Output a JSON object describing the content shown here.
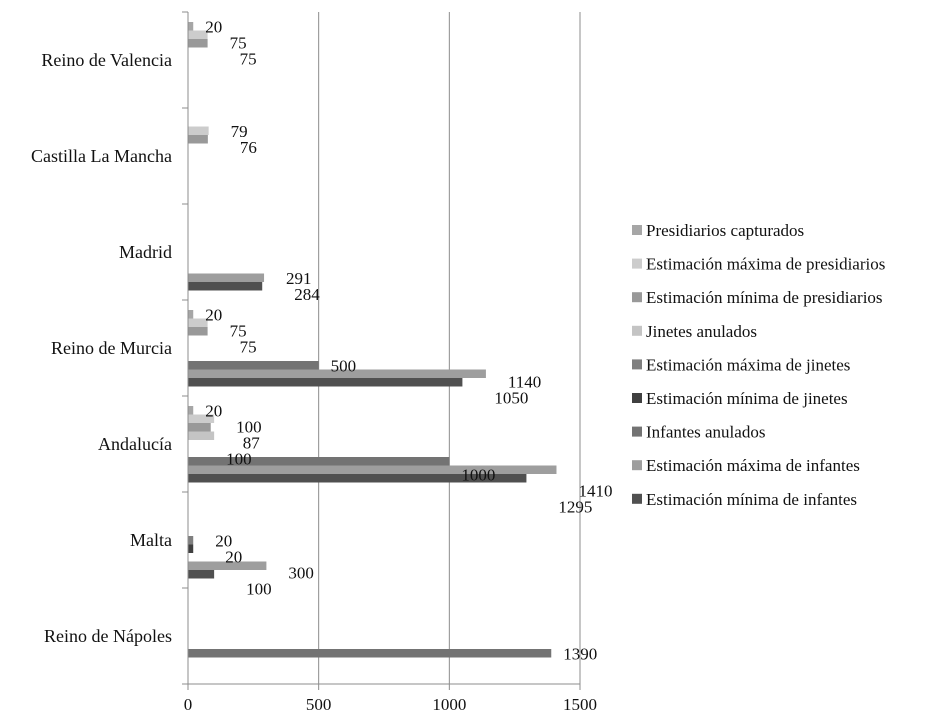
{
  "chart_data": {
    "type": "bar",
    "orientation": "horizontal",
    "title": "",
    "xlabel": "",
    "ylabel": "",
    "xlim": [
      0,
      1500
    ],
    "x_ticks": [
      "0",
      "500",
      "1000",
      "1500"
    ],
    "grid": "vertical",
    "legend_position": "right",
    "categories": [
      "Reino de Valencia",
      "Castilla La Mancha",
      "Madrid",
      "Reino de Murcia",
      "Andalucía",
      "Malta",
      "Reino de Nápoles"
    ],
    "series": [
      {
        "name": "Presidiarios capturados",
        "color": "#a6a6a6",
        "values": [
          20,
          null,
          null,
          20,
          20,
          null,
          null
        ]
      },
      {
        "name": "Estimación máxima de presidiarios",
        "color": "#cccccc",
        "values": [
          75,
          79,
          null,
          75,
          100,
          null,
          null
        ]
      },
      {
        "name": "Estimación mínima de presidiarios",
        "color": "#999999",
        "values": [
          75,
          76,
          null,
          75,
          87,
          null,
          null
        ]
      },
      {
        "name": "Jinetes anulados",
        "color": "#c4c4c4",
        "values": [
          null,
          null,
          null,
          null,
          100,
          null,
          null
        ]
      },
      {
        "name": "Estimación máxima de jinetes",
        "color": "#7f7f7f",
        "values": [
          null,
          null,
          null,
          null,
          null,
          20,
          null
        ]
      },
      {
        "name": "Estimación mínima de jinetes",
        "color": "#404040",
        "values": [
          null,
          null,
          null,
          null,
          null,
          20,
          null
        ]
      },
      {
        "name": "Infantes anulados",
        "color": "#737373",
        "values": [
          null,
          null,
          null,
          500,
          1000,
          null,
          1390
        ]
      },
      {
        "name": "Estimación máxima de infantes",
        "color": "#9e9e9e",
        "values": [
          null,
          null,
          291,
          1140,
          1410,
          300,
          null
        ]
      },
      {
        "name": "Estimación mínima de infantes",
        "color": "#505050",
        "values": [
          null,
          null,
          284,
          1050,
          1295,
          100,
          null
        ]
      }
    ]
  }
}
